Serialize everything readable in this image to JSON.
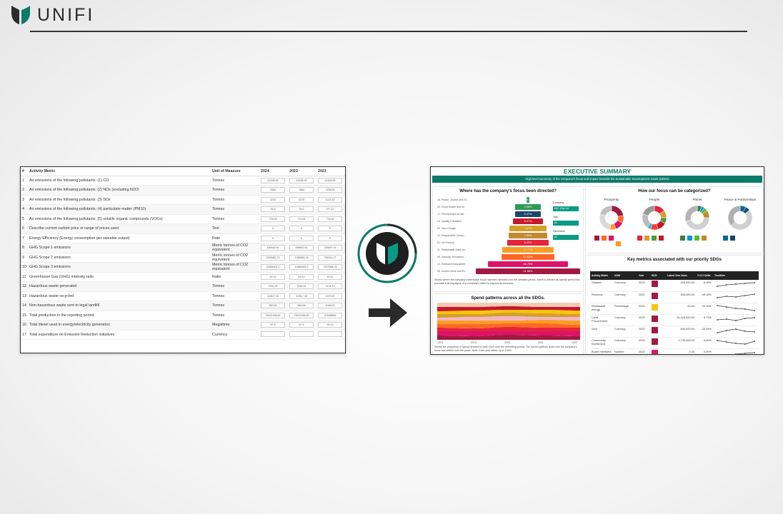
{
  "brand": {
    "name": "UNIFI",
    "accent": "#0b7a6a"
  },
  "left_table": {
    "headers": [
      "#",
      "Activity Metric",
      "Unit of Measure",
      "2024",
      "2023",
      "2022"
    ],
    "rows": [
      {
        "n": "1",
        "metric": "Air emissions of the following pollutants: (1) CO",
        "unit": "Tonnes",
        "v": [
          "41528.95",
          "41528.95",
          "41528.95"
        ]
      },
      {
        "n": "2",
        "metric": "Air emissions of the following pollutants: (2) NOx (excluding N2O)",
        "unit": "Tonnes",
        "v": [
          "1560",
          "1560",
          "1158.53"
        ]
      },
      {
        "n": "3",
        "metric": "Air emissions of the following pollutants: (3) SOx",
        "unit": "Tonnes",
        "v": [
          "4720",
          "4720",
          "1021.53"
        ]
      },
      {
        "n": "4",
        "metric": "Air emissions of the following pollutants: (4) particulate matter (PM10)",
        "unit": "Tonnes",
        "v": [
          "25.3",
          "25.3",
          "377.22"
        ]
      },
      {
        "n": "5",
        "metric": "Air emissions of the following pollutants: (5) volatile organic compounds (VOCs)",
        "unit": "Tonnes",
        "v": [
          "778.05",
          "778.05",
          "778.05"
        ]
      },
      {
        "n": "6",
        "metric": "Describe current carbon price or range of prices used",
        "unit": "Text",
        "v": [
          "0",
          "0",
          "0"
        ]
      },
      {
        "n": "7",
        "metric": "Energy Efficiency (Energy consumption per saleable output)",
        "unit": "Rate",
        "v": [
          "0",
          "0",
          "0"
        ]
      },
      {
        "n": "8",
        "metric": "GHG Scope 1 emissions",
        "unit": "Metric tonnes of CO2 equivalent",
        "v": [
          "498462.54",
          "498462.54",
          "225697.49"
        ]
      },
      {
        "n": "9",
        "metric": "GHG Scope 2 emissions",
        "unit": "Metric tonnes of CO2 equivalent",
        "v": [
          "1058982.29",
          "1058982.29",
          "755344.27"
        ]
      },
      {
        "n": "10",
        "metric": "GHG Scope 3 emissions",
        "unit": "Metric tonnes of CO2 equivalent",
        "v": [
          "10684902.2",
          "10684902.2",
          "7427508.78"
        ]
      },
      {
        "n": "11",
        "metric": "Greenhouse Gas (GHG) intensity ratio",
        "unit": "Ratio",
        "v": [
          "45.19",
          "45.19",
          "45.51"
        ]
      },
      {
        "n": "12",
        "metric": "Hazardous waste generated",
        "unit": "Tonnes",
        "v": [
          "2334.24",
          "2334.24",
          "1174.71"
        ]
      },
      {
        "n": "13",
        "metric": "Hazardous waste recycled",
        "unit": "Tonnes",
        "v": [
          "1156.7 18",
          "1156.7 18",
          "1079.62"
        ]
      },
      {
        "n": "14",
        "metric": "Non-hazardous waste sent to legal landfill",
        "unit": "Tonnes",
        "v": [
          "850.98",
          "850.98",
          "1095.52"
        ]
      },
      {
        "n": "15",
        "metric": "Total production in the reporting period.",
        "unit": "Tonnes",
        "v": [
          "75022186.82",
          "75022186.82",
          "37548898"
        ]
      },
      {
        "n": "16",
        "metric": "Total diesel used in energy/electricity generation",
        "unit": "Megalitres",
        "v": [
          "87.5",
          "87.5",
          "35.23"
        ]
      },
      {
        "n": "17",
        "metric": "Total expenditure on Emission Reduction initiatives",
        "unit": "Currency",
        "v": [
          "",
          "",
          ""
        ]
      }
    ]
  },
  "dashboard": {
    "title": "EXECUTIVE SUMMARY",
    "subtitle": "High level summary of the company's focus and impact towards the Sustainable Development Goals (SDGs)",
    "focus": {
      "heading": "Where has the company's focus been directed?",
      "rows": [
        {
          "label": "16. Peace, Justice and St...",
          "pct": "0.73%",
          "frac": 0.02,
          "color": "#2eaa5b"
        },
        {
          "label": "03. Good Health and W...",
          "pct": "5.38%",
          "frac": 0.17,
          "color": "#2e9a54"
        },
        {
          "label": "17. Partnerships for the ...",
          "pct": "5.47%",
          "frac": 0.17,
          "color": "#19486a"
        },
        {
          "label": "04. Quality Education",
          "pct": "6.07%",
          "frac": 0.19,
          "color": "#c5192d"
        },
        {
          "label": "02. Zero Hunger",
          "pct": "7.67%",
          "frac": 0.24,
          "color": "#d3a029"
        },
        {
          "label": "12. Responsible Consu...",
          "pct": "7.99%",
          "frac": 0.25,
          "color": "#bf8b2e"
        },
        {
          "label": "01. No Poverty",
          "pct": "8.53%",
          "frac": 0.27,
          "color": "#e5243b"
        },
        {
          "label": "11. Sustainable cities an...",
          "pct": "10.71%",
          "frac": 0.33,
          "color": "#fd9d24"
        },
        {
          "label": "09. Industry, Innovation ...",
          "pct": "10.93%",
          "frac": 0.34,
          "color": "#fd6925"
        },
        {
          "label": "10. Reduced Inequalities",
          "pct": "16.75%",
          "frac": 0.52,
          "color": "#dd1367"
        },
        {
          "label": "08. Decent Work and Ec...",
          "pct": "21.56%",
          "frac": 0.67,
          "color": "#a21942"
        }
      ],
      "filters": [
        {
          "label": "Company",
          "value": "ABC (Pty) Ltd"
        },
        {
          "label": "Year",
          "value": "All"
        },
        {
          "label": "Dimension",
          "value": "All"
        }
      ],
      "note": "Shows where the company's intentional focus has been directed over the selected period. Intent is defined as activity spend that provides a strong signal of a company's intent to improve its business."
    },
    "categories": {
      "heading": "How our focus can be categorized?",
      "items": [
        "Prosperity",
        "People",
        "Planet",
        "Peace & Partnerships"
      ]
    },
    "spend": {
      "heading": "Spend patterns across all the SDGs.",
      "years": [
        "2018",
        "2019",
        "2020",
        "2021",
        "2022"
      ],
      "note": "Shows the proportion of spend directed to each SDG over the preceding period. The spend patterns show how the company's focus has shifted over the years. Note: Each year tallies up to 100%."
    },
    "metrics": {
      "heading": "Key metrics associated with our priority SDGs",
      "headers": [
        "Activity Metric",
        "UOM",
        "Year",
        "SDG",
        "Latest Year Value",
        "Y-O-Y Delta",
        "Trendline"
      ],
      "rows": [
        {
          "metric": "Salaries",
          "uom": "Currency",
          "year": "2022",
          "value": "425,000.00",
          "delta": "6.30%",
          "sdg": "#a21942"
        },
        {
          "metric": "Revenue",
          "uom": "Currency",
          "year": "2022",
          "value": "500,000.00",
          "delta": "-49.06%",
          "sdg": "#a21942"
        },
        {
          "metric": "Renewable energy",
          "uom": "Percentage",
          "year": "2022",
          "value": "42.00",
          "delta": "20.00%",
          "sdg": "#fcc30b"
        },
        {
          "metric": "Local Procurement",
          "uom": "Currency",
          "year": "2022",
          "value": "24,425,000.00",
          "delta": "9.73%",
          "sdg": "#a21942"
        },
        {
          "metric": "GVA",
          "uom": "Currency",
          "year": "2022",
          "value": "600,000.00",
          "delta": "-23.94%",
          "sdg": "#a21942"
        },
        {
          "metric": "Community Investment",
          "uom": "Currency",
          "year": "2022",
          "value": "1,700,000.00",
          "delta": "6.50%",
          "sdg": "#a21942"
        },
        {
          "metric": "Board members",
          "uom": "Number",
          "year": "2022",
          "value": "2.00",
          "delta": "0.00%",
          "sdg": "#dd1367"
        }
      ]
    }
  }
}
